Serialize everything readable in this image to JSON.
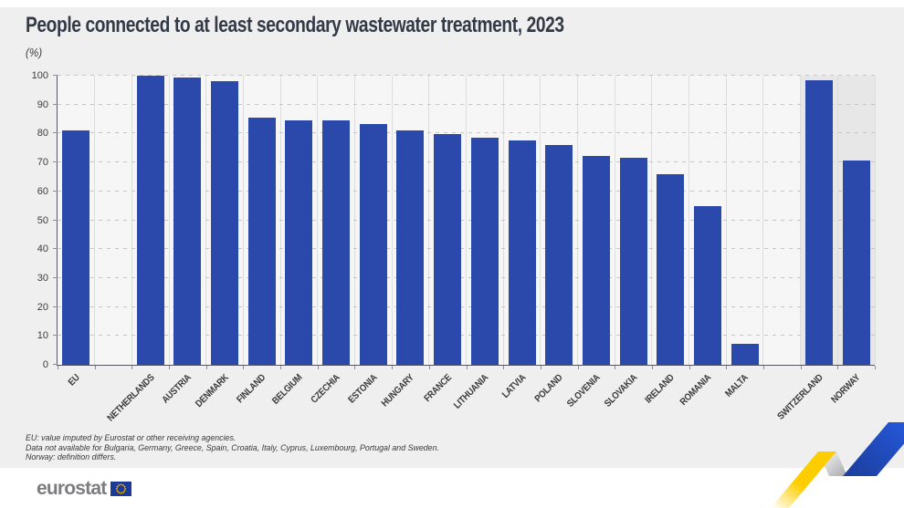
{
  "header": {
    "title": "People connected to at least secondary wastewater treatment, 2023",
    "unit": "(%)"
  },
  "chart_data": {
    "type": "bar",
    "title": "People connected to at least secondary wastewater treatment, 2023",
    "xlabel": "",
    "ylabel": "(%)",
    "ylim": [
      0,
      100
    ],
    "ytick_step": 10,
    "grid": "horizontal-dashed",
    "legend": "none",
    "bar_color": "#2b49ab",
    "categories": [
      "EU",
      "NETHERLANDS",
      "AUSTRIA",
      "DENMARK",
      "FINLAND",
      "BELGIUM",
      "CZECHIA",
      "ESTONIA",
      "HUNGARY",
      "FRANCE",
      "LITHUANIA",
      "LATVIA",
      "POLAND",
      "SLOVENIA",
      "SLOVAKIA",
      "IRELAND",
      "ROMANIA",
      "MALTA",
      "SWITZERLAND",
      "NORWAY"
    ],
    "values": [
      81.2,
      100,
      99.4,
      98.0,
      85.4,
      84.7,
      84.6,
      83.2,
      81.0,
      79.8,
      78.5,
      77.5,
      76.0,
      72.3,
      71.5,
      66.0,
      54.9,
      7.4,
      98.5,
      70.8
    ],
    "slots": [
      0,
      2,
      3,
      4,
      5,
      6,
      7,
      8,
      9,
      10,
      11,
      12,
      13,
      14,
      15,
      16,
      17,
      18,
      20,
      21
    ],
    "total_slots": 22,
    "efta_band": {
      "start_slot": 20,
      "color": "#e7e7e8"
    }
  },
  "footnotes": [
    "EU: value imputed by Eurostat or other receiving agencies.",
    "Data not available for Bulgaria, Germany, Greece, Spain, Croatia, Italy, Cyprus, Luxembourg, Portugal and Sweden.",
    "Norway: definition differs."
  ],
  "footer": {
    "brand": "eurostat"
  },
  "colors": {
    "bar_blue": "#2b49ab",
    "panel_gray": "#efeff0",
    "efta_band_gray": "#e7e7e8",
    "ribbon_yellow": "#fdcd00",
    "ribbon_blue": "#2455d4",
    "flag_blue": "#1e3a99",
    "flag_stars": "#ffcc00"
  }
}
